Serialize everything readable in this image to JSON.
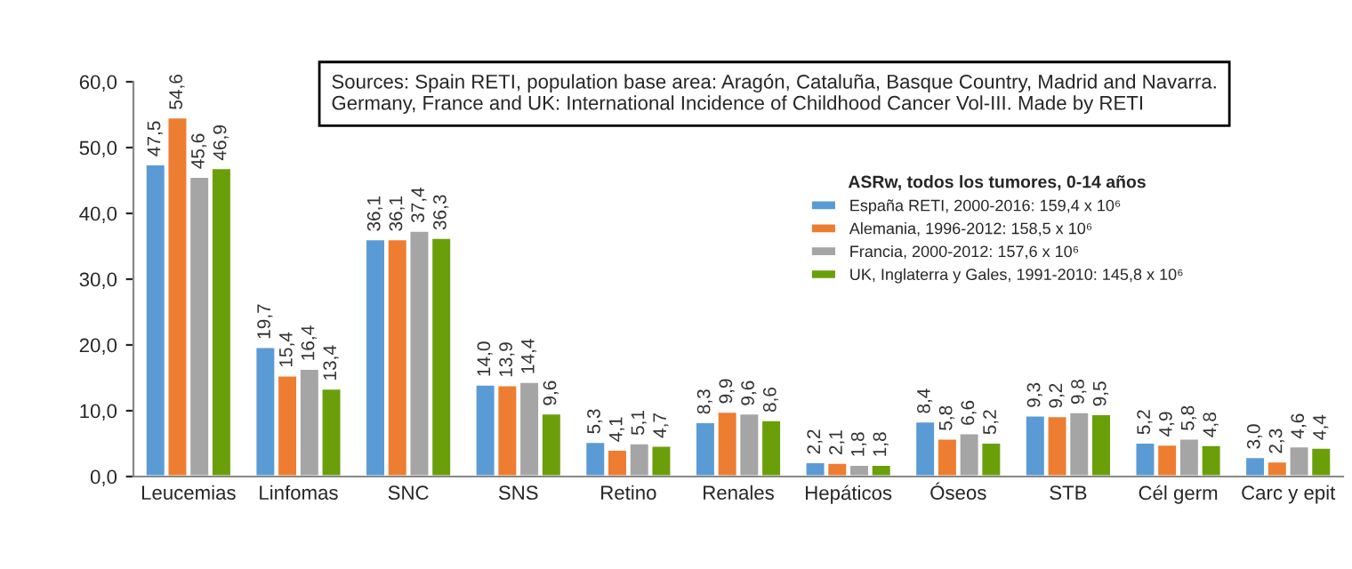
{
  "chart_data": {
    "type": "bar",
    "categories": [
      "Leucemias",
      "Linfomas",
      "SNC",
      "SNS",
      "Retino",
      "Renales",
      "Hepáticos",
      "Óseos",
      "STB",
      "Cél germ",
      "Carc y epit"
    ],
    "legend_title": "ASRw, todos los tumores, 0-14 años",
    "annotations": [
      "Sources: Spain RETI, population base area: Aragón, Cataluña, Basque Country, Madrid and Navarra.\nGermany, France and UK: International Incidence of Childhood Cancer Vol-III. Made by RETI"
    ],
    "series": [
      {
        "name": "España RETI, 2000-2016: 159,4 x 10⁶",
        "color": "#5b9bd5",
        "values": [
          47.5,
          19.7,
          36.1,
          14.0,
          5.3,
          8.3,
          2.2,
          8.4,
          9.3,
          5.2,
          3.0
        ],
        "value_labels": [
          "47,5",
          "19,7",
          "36,1",
          "14,0",
          "5,3",
          "8,3",
          "2,2",
          "8,4",
          "9,3",
          "5,2",
          "3,0"
        ]
      },
      {
        "name": "Alemania, 1996-2012: 158,5 x 10⁶",
        "color": "#ed7d31",
        "values": [
          54.6,
          15.4,
          36.1,
          13.9,
          4.1,
          9.9,
          2.1,
          5.8,
          9.2,
          4.9,
          2.3
        ],
        "value_labels": [
          "54,6",
          "15,4",
          "36,1",
          "13,9",
          "4,1",
          "9,9",
          "2,1",
          "5,8",
          "9,2",
          "4,9",
          "2,3"
        ]
      },
      {
        "name": "Francia, 2000-2012: 157,6 x 10⁶",
        "color": "#a5a5a5",
        "values": [
          45.6,
          16.4,
          37.4,
          14.4,
          5.1,
          9.6,
          1.8,
          6.6,
          9.8,
          5.8,
          4.6
        ],
        "value_labels": [
          "45,6",
          "16,4",
          "37,4",
          "14,4",
          "5,1",
          "9,6",
          "1,8",
          "6,6",
          "9,8",
          "5,8",
          "4,6"
        ]
      },
      {
        "name": "UK, Inglaterra y Gales, 1991-2010: 145,8 x 10⁶",
        "color": "#6a9f0a",
        "values": [
          46.9,
          13.4,
          36.3,
          9.6,
          4.7,
          8.6,
          1.8,
          5.2,
          9.5,
          4.8,
          4.4
        ],
        "value_labels": [
          "46,9",
          "13,4",
          "36,3",
          "9,6",
          "4,7",
          "8,6",
          "1,8",
          "5,2",
          "9,5",
          "4,8",
          "4,4"
        ]
      }
    ],
    "ylim": [
      0,
      60
    ],
    "yticks": [
      {
        "value": 0,
        "label": "0,0"
      },
      {
        "value": 10,
        "label": "10,0"
      },
      {
        "value": 20,
        "label": "20,0"
      },
      {
        "value": 30,
        "label": "30,0"
      },
      {
        "value": 40,
        "label": "40,0"
      },
      {
        "value": 50,
        "label": "50,0"
      },
      {
        "value": 60,
        "label": "60,0"
      }
    ],
    "grid": false,
    "legend": "top right"
  }
}
